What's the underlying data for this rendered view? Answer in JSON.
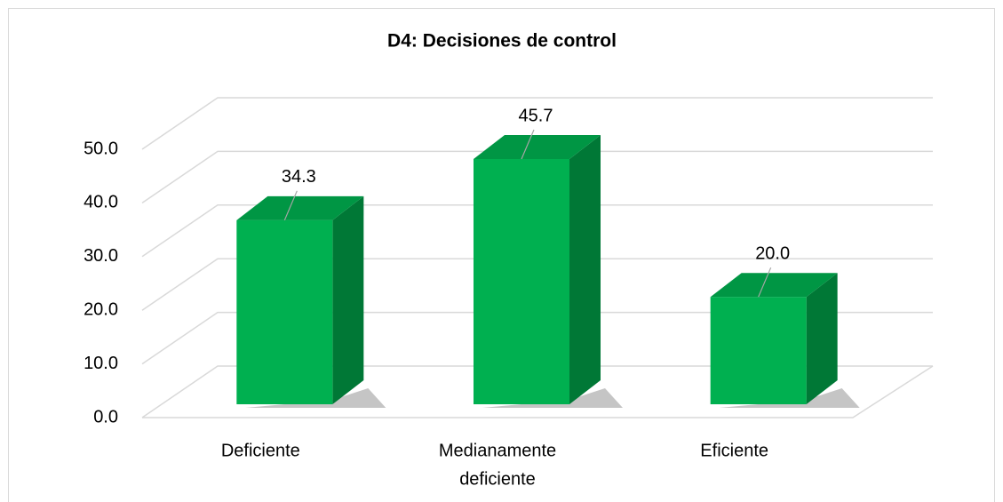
{
  "chart_data": {
    "type": "bar3d",
    "title": "D4: Decisiones de control",
    "categories": [
      [
        "Deficiente"
      ],
      [
        "Medianamente",
        "deficiente"
      ],
      [
        "Eficiente"
      ]
    ],
    "values": [
      34.3,
      45.7,
      20.0
    ],
    "value_labels": [
      "34.3",
      "45.7",
      "20.0"
    ],
    "color": "#00b050",
    "ylim": [
      0,
      50
    ],
    "yticks": [
      {
        "value": 0,
        "label": "0.0"
      },
      {
        "value": 10,
        "label": "10.0"
      },
      {
        "value": 20,
        "label": "20.0"
      },
      {
        "value": 30,
        "label": "30.0"
      },
      {
        "value": 40,
        "label": "40.0"
      },
      {
        "value": 50,
        "label": "50.0"
      }
    ],
    "grid": true
  }
}
